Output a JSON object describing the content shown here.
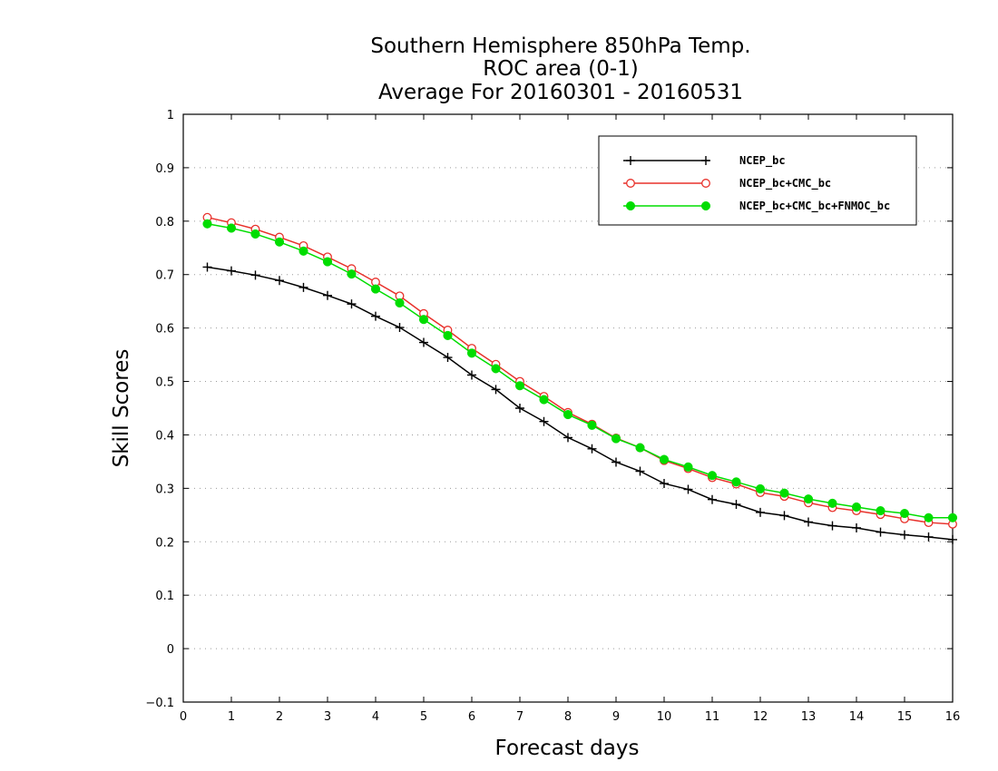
{
  "chart_data": {
    "type": "line",
    "title_lines": [
      "Southern Hemisphere 850hPa Temp.",
      "ROC area (0-1)",
      "Average For 20160301 - 20160531"
    ],
    "xlabel": "Forecast days",
    "ylabel": "Skill Scores",
    "xlim": [
      0,
      16
    ],
    "ylim": [
      -0.1,
      1
    ],
    "x_ticks": [
      "0",
      "1",
      "2",
      "3",
      "4",
      "5",
      "6",
      "7",
      "8",
      "9",
      "10",
      "11",
      "12",
      "13",
      "14",
      "15",
      "16"
    ],
    "y_ticks": [
      "−0.1",
      "0",
      "0.1",
      "0.2",
      "0.3",
      "0.4",
      "0.5",
      "0.6",
      "0.7",
      "0.8",
      "0.9",
      "1"
    ],
    "grid": "dotted horizontal",
    "legend_position": "top-right",
    "x": [
      0.5,
      1,
      1.5,
      2,
      2.5,
      3,
      3.5,
      4,
      4.5,
      5,
      5.5,
      6,
      6.5,
      7,
      7.5,
      8,
      8.5,
      9,
      9.5,
      10,
      10.5,
      11,
      11.5,
      12,
      12.5,
      13,
      13.5,
      14,
      14.5,
      15,
      15.5,
      16
    ],
    "series": [
      {
        "name": "NCEP_bc",
        "color": "#000000",
        "marker": "plus",
        "values": [
          0.714,
          0.707,
          0.699,
          0.689,
          0.676,
          0.661,
          0.645,
          0.622,
          0.601,
          0.573,
          0.545,
          0.512,
          0.485,
          0.45,
          0.425,
          0.395,
          0.374,
          0.349,
          0.332,
          0.309,
          0.298,
          0.279,
          0.27,
          0.255,
          0.249,
          0.237,
          0.23,
          0.226,
          0.218,
          0.213,
          0.209,
          0.204
        ]
      },
      {
        "name": "NCEP_bc+CMC_bc",
        "color": "#e8312b",
        "marker": "open-circle",
        "values": [
          0.807,
          0.797,
          0.785,
          0.77,
          0.754,
          0.733,
          0.711,
          0.686,
          0.66,
          0.627,
          0.596,
          0.562,
          0.532,
          0.5,
          0.472,
          0.442,
          0.42,
          0.394,
          0.376,
          0.352,
          0.337,
          0.32,
          0.308,
          0.292,
          0.285,
          0.273,
          0.264,
          0.258,
          0.251,
          0.243,
          0.236,
          0.233
        ]
      },
      {
        "name": "NCEP_bc+CMC_bc+FNMOC_bc",
        "color": "#00dd00",
        "marker": "filled-circle",
        "values": [
          0.795,
          0.787,
          0.776,
          0.761,
          0.744,
          0.724,
          0.701,
          0.673,
          0.647,
          0.616,
          0.586,
          0.553,
          0.524,
          0.492,
          0.466,
          0.438,
          0.418,
          0.393,
          0.376,
          0.354,
          0.34,
          0.324,
          0.312,
          0.299,
          0.291,
          0.28,
          0.272,
          0.265,
          0.258,
          0.253,
          0.245,
          0.245
        ]
      }
    ]
  }
}
